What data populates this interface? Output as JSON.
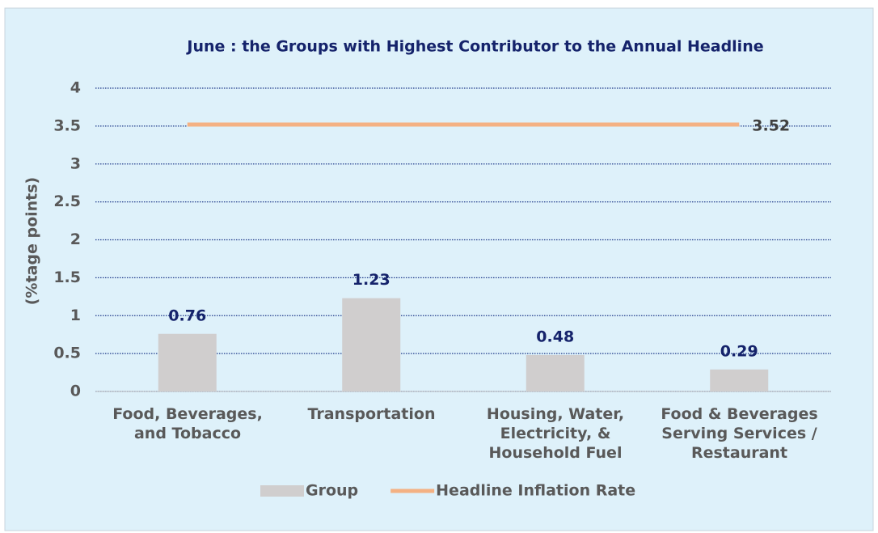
{
  "chart_data": {
    "type": "bar_line",
    "title": "June : the Groups with Highest Contributor to the Annual  Headline",
    "y_label": "(%tage points)",
    "categories": [
      "Food, Beverages,\nand Tobacco",
      "Transportation",
      "Housing, Water,\nElectricity, &\nHousehold Fuel",
      "Food & Beverages\nServing Services /\nRestaurant"
    ],
    "series": [
      {
        "name": "Group",
        "type": "bar",
        "color": "#d0cece",
        "values": [
          0.76,
          1.23,
          0.48,
          0.29
        ]
      },
      {
        "name": "Headline Inflation Rate",
        "type": "line",
        "color": "#f4b183",
        "values": [
          3.52,
          3.52,
          3.52,
          3.52
        ]
      }
    ],
    "ylim": [
      0,
      4
    ],
    "yticks": [
      0,
      0.5,
      1,
      1.5,
      2,
      2.5,
      3,
      3.5,
      4
    ],
    "grid": true,
    "legend": "bottom"
  }
}
